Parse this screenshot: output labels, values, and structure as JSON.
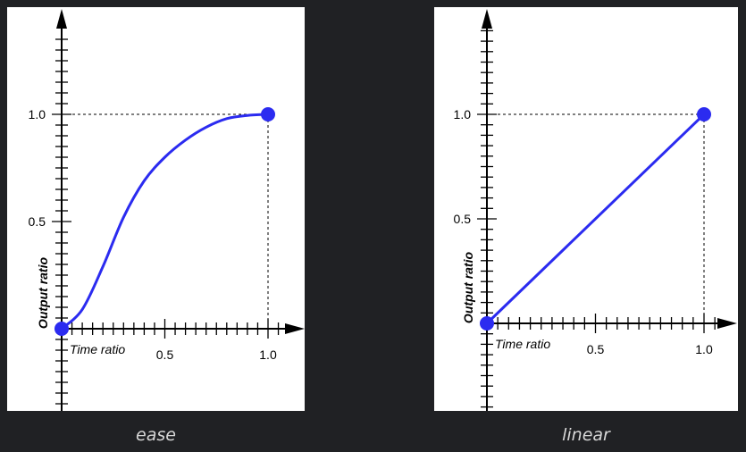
{
  "colors": {
    "background": "#202124",
    "curve": "#2b2bf0",
    "axis": "#000000",
    "caption": "#d7d7d7"
  },
  "chart_data": [
    {
      "type": "line",
      "caption": "ease",
      "xlabel": "Time ratio",
      "ylabel": "Output ratio",
      "xticks": [
        "0.5",
        "1.0"
      ],
      "yticks": [
        "0.5",
        "1.0"
      ],
      "xlim": [
        0,
        1
      ],
      "ylim": [
        0,
        1
      ],
      "series": [
        {
          "x": [
            0,
            0.1,
            0.2,
            0.3,
            0.4,
            0.5,
            0.6,
            0.7,
            0.8,
            0.9,
            1.0
          ],
          "y": [
            0,
            0.09,
            0.29,
            0.52,
            0.69,
            0.8,
            0.88,
            0.94,
            0.98,
            0.995,
            1.0
          ]
        }
      ],
      "endpoints": [
        [
          0,
          0
        ],
        [
          1,
          1
        ]
      ]
    },
    {
      "type": "line",
      "caption": "linear",
      "xlabel": "Time ratio",
      "ylabel": "Output ratio",
      "xticks": [
        "0.5",
        "1.0"
      ],
      "yticks": [
        "0.5",
        "1.0"
      ],
      "xlim": [
        0,
        1
      ],
      "ylim": [
        0,
        1
      ],
      "series": [
        {
          "x": [
            0,
            1
          ],
          "y": [
            0,
            1
          ]
        }
      ],
      "endpoints": [
        [
          0,
          0
        ],
        [
          1,
          1
        ]
      ]
    }
  ]
}
